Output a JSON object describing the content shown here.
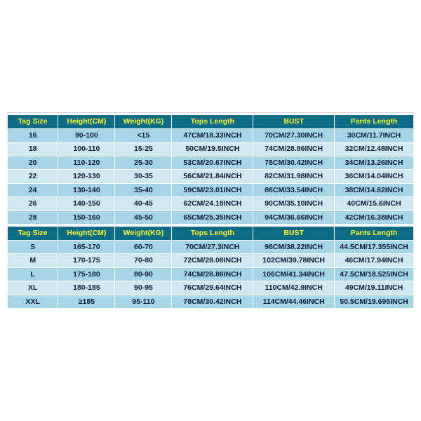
{
  "colors": {
    "header_bg": "#0b6b84",
    "header_text": "#ffff33",
    "row_even_bg": "#a6d6e6",
    "row_odd_bg": "#cfe8f1",
    "cell_text": "#0a1a3a",
    "border": "#ffffff",
    "rule": "#cfd4dc"
  },
  "columns": [
    "Tag Size",
    "Height(CM)",
    "Weight(KG)",
    "Tops Length",
    "BUST",
    "Pants Length"
  ],
  "table1": {
    "rows": [
      [
        "16",
        "90-100",
        "<15",
        "47CM/18.33INCH",
        "70CM/27.30INCH",
        "30CM/11.7INCH"
      ],
      [
        "18",
        "100-110",
        "15-25",
        "50CM/19.5INCH",
        "74CM/28.86INCH",
        "32CM/12.48INCH"
      ],
      [
        "20",
        "110-120",
        "25-30",
        "53CM/20.67INCH",
        "78CM/30.42INCH",
        "34CM/13.26INCH"
      ],
      [
        "22",
        "120-130",
        "30-35",
        "56CM/21.84INCH",
        "82CM/31.98INCH",
        "36CM/14.04INCH"
      ],
      [
        "24",
        "130-140",
        "35-40",
        "59CM/23.01INCH",
        "86CM/33.54INCH",
        "38CM/14.82INCH"
      ],
      [
        "26",
        "140-150",
        "40-45",
        "62CM/24.18INCH",
        "90CM/35.10INCH",
        "40CM/15.6INCH"
      ],
      [
        "28",
        "150-160",
        "45-50",
        "65CM/25.35INCH",
        "94CM/36.66INCH",
        "42CM/16.38INCH"
      ]
    ]
  },
  "table2": {
    "rows": [
      [
        "S",
        "165-170",
        "60-70",
        "70CM/27.3INCH",
        "98CM/38.22INCH",
        "44.5CM/17.355INCH"
      ],
      [
        "M",
        "170-175",
        "70-80",
        "72CM/28.08INCH",
        "102CM/39.78INCH",
        "46CM/17.94INCH"
      ],
      [
        "L",
        "175-180",
        "80-90",
        "74CM/28.86INCH",
        "106CM/41.34INCH",
        "47.5CM/18.525INCH"
      ],
      [
        "XL",
        "180-185",
        "90-95",
        "76CM/29.64INCH",
        "110CM/42.9INCH",
        "49CM/19.11INCH"
      ],
      [
        "XXL",
        "≥185",
        "95-110",
        "78CM/30.42INCH",
        "114CM/44.46INCH",
        "50.5CM/19.695INCH"
      ]
    ]
  }
}
